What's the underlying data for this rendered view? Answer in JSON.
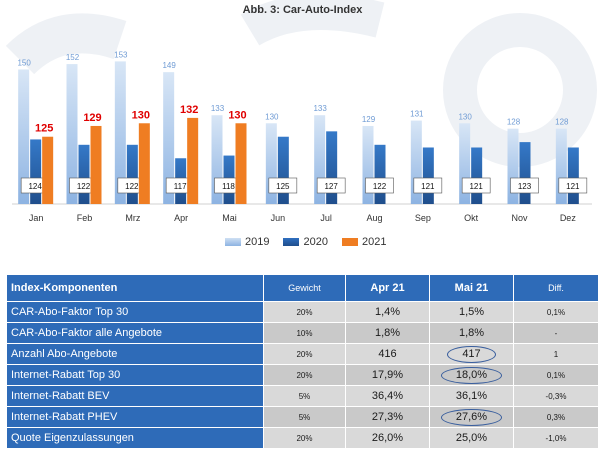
{
  "chart_data": {
    "type": "bar",
    "title": "Abb. 3: Car-Auto-Index",
    "categories": [
      "Jan",
      "Feb",
      "Mrz",
      "Apr",
      "Mai",
      "Jun",
      "Jul",
      "Aug",
      "Sep",
      "Okt",
      "Nov",
      "Dez"
    ],
    "series": [
      {
        "name": "2019",
        "values": [
          150,
          152,
          153,
          149,
          133,
          130,
          133,
          129,
          131,
          130,
          128,
          128
        ],
        "color": "#8db3e2"
      },
      {
        "name": "2020",
        "values": [
          124,
          122,
          122,
          117,
          118,
          125,
          127,
          122,
          121,
          121,
          123,
          121
        ],
        "color": "#1f4e8c"
      },
      {
        "name": "2021",
        "values": [
          125,
          129,
          130,
          132,
          130,
          null,
          null,
          null,
          null,
          null,
          null,
          null
        ],
        "color": "#ef7d22"
      }
    ],
    "label_colors": {
      "2019": "#6f9bd4",
      "2021": "#e00000"
    },
    "ylim": [
      100,
      155
    ],
    "grid": false,
    "legend_position": "bottom"
  },
  "legend": [
    "2019",
    "2020",
    "2021"
  ],
  "table": {
    "headers": [
      "Index-Komponenten",
      "Gewicht",
      "Apr 21",
      "Mai 21",
      "Diff."
    ],
    "rows": [
      {
        "name": "CAR-Abo-Faktor Top 30",
        "weight": "20%",
        "apr": "1,4%",
        "mai": "1,5%",
        "diff": "0,1%",
        "circled": false
      },
      {
        "name": "CAR-Abo-Faktor alle Angebote",
        "weight": "10%",
        "apr": "1,8%",
        "mai": "1,8%",
        "diff": "-",
        "circled": false
      },
      {
        "name": "Anzahl Abo-Angebote",
        "weight": "20%",
        "apr": "416",
        "mai": "417",
        "diff": "1",
        "circled": true
      },
      {
        "name": "Internet-Rabatt Top 30",
        "weight": "20%",
        "apr": "17,9%",
        "mai": "18,0%",
        "diff": "0,1%",
        "circled": true
      },
      {
        "name": "Internet-Rabatt BEV",
        "weight": "5%",
        "apr": "36,4%",
        "mai": "36,1%",
        "diff": "-0,3%",
        "circled": false
      },
      {
        "name": "Internet-Rabatt PHEV",
        "weight": "5%",
        "apr": "27,3%",
        "mai": "27,6%",
        "diff": "0,3%",
        "circled": true
      },
      {
        "name": "Quote Eigenzulassungen",
        "weight": "20%",
        "apr": "26,0%",
        "mai": "25,0%",
        "diff": "-1,0%",
        "circled": false
      }
    ]
  }
}
